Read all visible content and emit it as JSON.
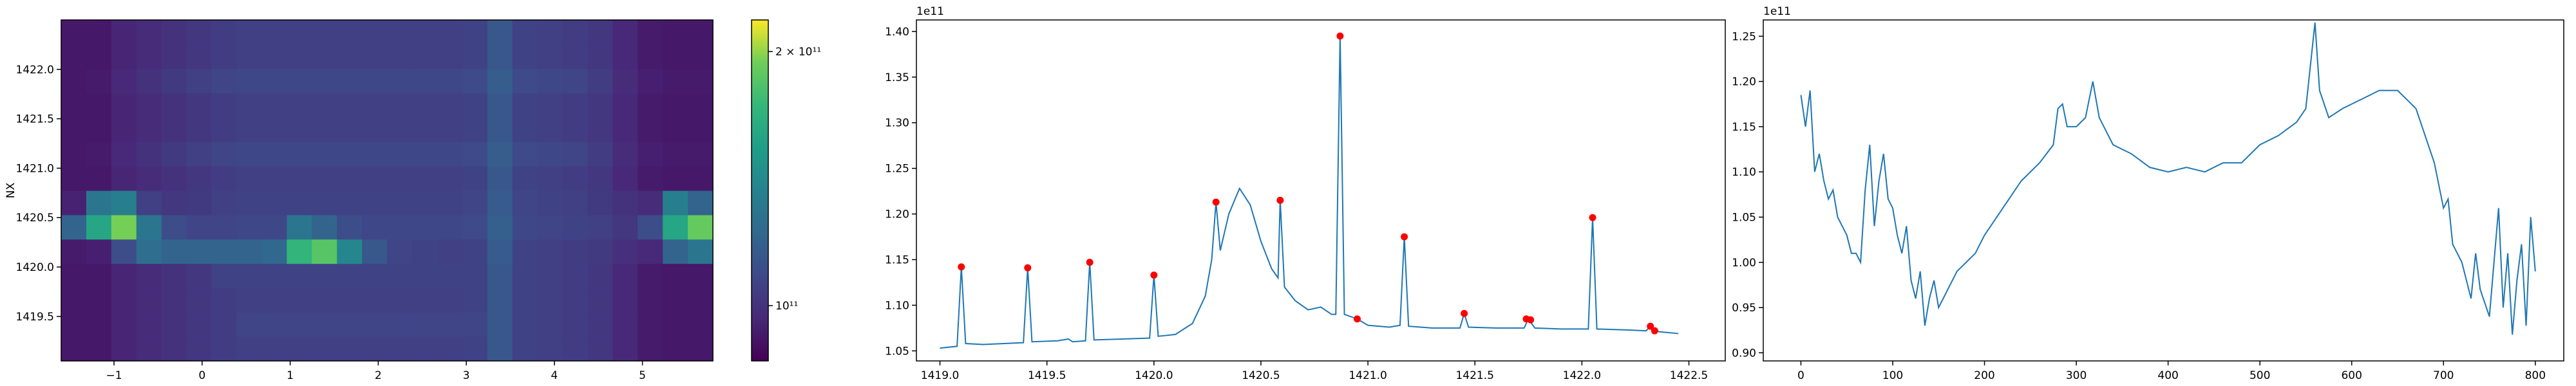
{
  "chart_data": [
    {
      "type": "heatmap",
      "ylabel": "NX",
      "colormap": "viridis",
      "xlim": [
        -1.6,
        5.8
      ],
      "ylim": [
        1419.05,
        1422.5
      ],
      "xticks": [
        {
          "value": -1,
          "label": "−1"
        },
        0,
        1,
        2,
        3,
        4,
        5
      ],
      "yticks": [
        1419.5,
        {
          "value": 1420,
          "label": "1420.0"
        },
        1420.5,
        {
          "value": 1421,
          "label": "1421.0"
        },
        1421.5,
        {
          "value": 1422,
          "label": "1422.0"
        }
      ],
      "z": [
        [
          92000000000.0,
          92000000000.0,
          96000000000.0,
          98000000000.0,
          100000000000.0,
          102000000000.0,
          104000000000.0,
          105000000000.0,
          105000000000.0,
          105000000000.0,
          105000000000.0,
          105000000000.0,
          105000000000.0,
          105000000000.0,
          105000000000.0,
          105000000000.0,
          106000000000.0,
          115000000000.0,
          106000000000.0,
          105000000000.0,
          104000000000.0,
          102000000000.0,
          97000000000.0,
          93000000000.0,
          92000000000.0,
          92000000000.0
        ],
        [
          92000000000.0,
          92000000000.0,
          96000000000.0,
          98000000000.0,
          100000000000.0,
          102000000000.0,
          104000000000.0,
          107000000000.0,
          107000000000.0,
          107000000000.0,
          107000000000.0,
          107000000000.0,
          107000000000.0,
          107000000000.0,
          107000000000.0,
          107000000000.0,
          107000000000.0,
          115000000000.0,
          106000000000.0,
          105000000000.0,
          104000000000.0,
          102000000000.0,
          97000000000.0,
          93000000000.0,
          92000000000.0,
          92000000000.0
        ],
        [
          92000000000.0,
          92000000000.0,
          96000000000.0,
          98000000000.0,
          100000000000.0,
          102000000000.0,
          104000000000.0,
          105000000000.0,
          105000000000.0,
          105000000000.0,
          105000000000.0,
          105000000000.0,
          105000000000.0,
          105000000000.0,
          105000000000.0,
          105000000000.0,
          106000000000.0,
          115000000000.0,
          106000000000.0,
          105000000000.0,
          104000000000.0,
          102000000000.0,
          97000000000.0,
          93000000000.0,
          92000000000.0,
          92000000000.0
        ],
        [
          92000000000.0,
          92000000000.0,
          96000000000.0,
          98000000000.0,
          100000000000.0,
          102000000000.0,
          106000000000.0,
          106000000000.0,
          106000000000.0,
          106000000000.0,
          106000000000.0,
          106000000000.0,
          106000000000.0,
          106000000000.0,
          106000000000.0,
          106000000000.0,
          106000000000.0,
          115000000000.0,
          106000000000.0,
          105000000000.0,
          104000000000.0,
          102000000000.0,
          97000000000.0,
          93000000000.0,
          92000000000.0,
          92000000000.0
        ],
        [
          93000000000.0,
          94000000000.0,
          110000000000.0,
          125000000000.0,
          120000000000.0,
          120000000000.0,
          120000000000.0,
          120000000000.0,
          122000000000.0,
          170000000000.0,
          185000000000.0,
          140000000000.0,
          115000000000.0,
          107000000000.0,
          106000000000.0,
          105000000000.0,
          106000000000.0,
          116000000000.0,
          106000000000.0,
          105000000000.0,
          104000000000.0,
          103000000000.0,
          99000000000.0,
          97000000000.0,
          120000000000.0,
          130000000000.0
        ],
        [
          120000000000.0,
          160000000000.0,
          195000000000.0,
          130000000000.0,
          110000000000.0,
          107000000000.0,
          107000000000.0,
          108000000000.0,
          108000000000.0,
          130000000000.0,
          120000000000.0,
          110000000000.0,
          108000000000.0,
          108000000000.0,
          108000000000.0,
          108000000000.0,
          109000000000.0,
          118000000000.0,
          108000000000.0,
          107000000000.0,
          106000000000.0,
          105000000000.0,
          102000000000.0,
          110000000000.0,
          160000000000.0,
          190000000000.0
        ],
        [
          95000000000.0,
          130000000000.0,
          135000000000.0,
          105000000000.0,
          102000000000.0,
          103000000000.0,
          105000000000.0,
          106000000000.0,
          106000000000.0,
          106000000000.0,
          106000000000.0,
          106000000000.0,
          106000000000.0,
          106000000000.0,
          106000000000.0,
          106000000000.0,
          107000000000.0,
          116000000000.0,
          107000000000.0,
          106000000000.0,
          105000000000.0,
          103000000000.0,
          100000000000.0,
          98000000000.0,
          135000000000.0,
          120000000000.0
        ],
        [
          92000000000.0,
          92000000000.0,
          96000000000.0,
          98000000000.0,
          100000000000.0,
          102000000000.0,
          104000000000.0,
          105000000000.0,
          105000000000.0,
          105000000000.0,
          105000000000.0,
          105000000000.0,
          105000000000.0,
          105000000000.0,
          105000000000.0,
          105000000000.0,
          106000000000.0,
          115000000000.0,
          106000000000.0,
          105000000000.0,
          104000000000.0,
          102000000000.0,
          97000000000.0,
          93000000000.0,
          92000000000.0,
          92000000000.0
        ],
        [
          92000000000.0,
          93000000000.0,
          97000000000.0,
          100000000000.0,
          103000000000.0,
          105000000000.0,
          107000000000.0,
          108000000000.0,
          108000000000.0,
          108000000000.0,
          108000000000.0,
          108000000000.0,
          108000000000.0,
          108000000000.0,
          108000000000.0,
          108000000000.0,
          109000000000.0,
          117000000000.0,
          109000000000.0,
          108000000000.0,
          107000000000.0,
          104000000000.0,
          98000000000.0,
          94000000000.0,
          93000000000.0,
          93000000000.0
        ],
        [
          92000000000.0,
          92000000000.0,
          96000000000.0,
          98000000000.0,
          100000000000.0,
          102000000000.0,
          104000000000.0,
          105000000000.0,
          105000000000.0,
          105000000000.0,
          105000000000.0,
          105000000000.0,
          105000000000.0,
          105000000000.0,
          105000000000.0,
          105000000000.0,
          106000000000.0,
          115000000000.0,
          106000000000.0,
          105000000000.0,
          104000000000.0,
          102000000000.0,
          97000000000.0,
          93000000000.0,
          92000000000.0,
          92000000000.0
        ],
        [
          92000000000.0,
          92000000000.0,
          96000000000.0,
          98000000000.0,
          100000000000.0,
          102000000000.0,
          104000000000.0,
          105000000000.0,
          105000000000.0,
          105000000000.0,
          105000000000.0,
          105000000000.0,
          105000000000.0,
          105000000000.0,
          105000000000.0,
          105000000000.0,
          106000000000.0,
          115000000000.0,
          106000000000.0,
          105000000000.0,
          104000000000.0,
          102000000000.0,
          97000000000.0,
          93000000000.0,
          92000000000.0,
          92000000000.0
        ],
        [
          92000000000.0,
          93000000000.0,
          97000000000.0,
          100000000000.0,
          103000000000.0,
          105000000000.0,
          107000000000.0,
          108000000000.0,
          108000000000.0,
          108000000000.0,
          108000000000.0,
          108000000000.0,
          108000000000.0,
          108000000000.0,
          108000000000.0,
          108000000000.0,
          109000000000.0,
          117000000000.0,
          109000000000.0,
          108000000000.0,
          107000000000.0,
          104000000000.0,
          98000000000.0,
          94000000000.0,
          93000000000.0,
          93000000000.0
        ],
        [
          92000000000.0,
          92000000000.0,
          96000000000.0,
          98000000000.0,
          100000000000.0,
          102000000000.0,
          104000000000.0,
          105000000000.0,
          105000000000.0,
          105000000000.0,
          105000000000.0,
          105000000000.0,
          105000000000.0,
          105000000000.0,
          105000000000.0,
          105000000000.0,
          106000000000.0,
          115000000000.0,
          106000000000.0,
          105000000000.0,
          104000000000.0,
          102000000000.0,
          97000000000.0,
          93000000000.0,
          92000000000.0,
          92000000000.0
        ],
        [
          92000000000.0,
          92000000000.0,
          96000000000.0,
          98000000000.0,
          100000000000.0,
          102000000000.0,
          104000000000.0,
          105000000000.0,
          105000000000.0,
          105000000000.0,
          105000000000.0,
          105000000000.0,
          105000000000.0,
          105000000000.0,
          105000000000.0,
          105000000000.0,
          106000000000.0,
          115000000000.0,
          106000000000.0,
          105000000000.0,
          104000000000.0,
          102000000000.0,
          97000000000.0,
          93000000000.0,
          92000000000.0,
          92000000000.0
        ]
      ],
      "colorbar": {
        "scale": "log",
        "clim": [
          86000000000.0,
          218000000000.0
        ],
        "ticks": [
          {
            "value": 100000000000.0,
            "label": "10¹¹"
          },
          {
            "value": 200000000000.0,
            "label": "2 × 10¹¹"
          }
        ]
      }
    },
    {
      "type": "line",
      "offset_label": "1e11",
      "xlim": [
        1418.89,
        1422.67
      ],
      "ylim": [
        1.039,
        1.4126
      ],
      "xticks": [
        {
          "value": 1419,
          "label": "1419.0"
        },
        1419.5,
        {
          "value": 1420,
          "label": "1420.0"
        },
        1420.5,
        {
          "value": 1421,
          "label": "1421.0"
        },
        1421.5,
        {
          "value": 1422,
          "label": "1422.0"
        },
        1422.5
      ],
      "yticks": [
        1.05,
        {
          "value": 1.1,
          "label": "1.10"
        },
        1.15,
        {
          "value": 1.2,
          "label": "1.20"
        },
        1.25,
        {
          "value": 1.3,
          "label": "1.30"
        },
        1.35,
        {
          "value": 1.4,
          "label": "1.40"
        }
      ],
      "series": [
        {
          "color": "#1f77b4",
          "x": [
            1419.0,
            1419.08,
            1419.1,
            1419.12,
            1419.2,
            1419.3,
            1419.39,
            1419.41,
            1419.43,
            1419.55,
            1419.6,
            1419.62,
            1419.68,
            1419.7,
            1419.72,
            1419.85,
            1419.98,
            1420.0,
            1420.02,
            1420.1,
            1420.18,
            1420.24,
            1420.27,
            1420.29,
            1420.31,
            1420.35,
            1420.4,
            1420.45,
            1420.5,
            1420.55,
            1420.58,
            1420.59,
            1420.61,
            1420.66,
            1420.72,
            1420.78,
            1420.83,
            1420.85,
            1420.87,
            1420.89,
            1420.95,
            1421.0,
            1421.1,
            1421.15,
            1421.17,
            1421.19,
            1421.3,
            1421.43,
            1421.45,
            1421.47,
            1421.6,
            1421.73,
            1421.75,
            1421.78,
            1421.9,
            1422.03,
            1422.05,
            1422.07,
            1422.2,
            1422.3,
            1422.32,
            1422.36,
            1422.45
          ],
          "values": [
            1.053,
            1.055,
            1.142,
            1.058,
            1.057,
            1.058,
            1.059,
            1.141,
            1.06,
            1.061,
            1.063,
            1.06,
            1.061,
            1.147,
            1.062,
            1.063,
            1.064,
            1.133,
            1.066,
            1.068,
            1.08,
            1.11,
            1.15,
            1.213,
            1.16,
            1.2,
            1.228,
            1.21,
            1.17,
            1.14,
            1.13,
            1.215,
            1.12,
            1.105,
            1.095,
            1.098,
            1.09,
            1.09,
            1.395,
            1.09,
            1.085,
            1.078,
            1.076,
            1.078,
            1.175,
            1.077,
            1.075,
            1.075,
            1.091,
            1.076,
            1.075,
            1.075,
            1.085,
            1.075,
            1.074,
            1.074,
            1.196,
            1.074,
            1.073,
            1.072,
            1.077,
            1.071,
            1.069
          ]
        }
      ],
      "markers": {
        "color": "red",
        "x": [
          1419.1,
          1419.41,
          1419.7,
          1420.0,
          1420.29,
          1420.59,
          1420.87,
          1420.95,
          1421.17,
          1421.45,
          1421.74,
          1421.76,
          1422.05,
          1422.32,
          1422.34
        ],
        "values": [
          1.142,
          1.141,
          1.147,
          1.133,
          1.213,
          1.215,
          1.395,
          1.085,
          1.175,
          1.091,
          1.085,
          1.084,
          1.196,
          1.077,
          1.072
        ]
      }
    },
    {
      "type": "line",
      "offset_label": "1e11",
      "xlim": [
        -41,
        831
      ],
      "ylim": [
        0.891,
        1.268
      ],
      "xticks": [
        0,
        100,
        200,
        300,
        400,
        500,
        600,
        700,
        800
      ],
      "yticks": [
        {
          "value": 0.9,
          "label": "0.90"
        },
        0.95,
        {
          "value": 1.0,
          "label": "1.00"
        },
        1.05,
        {
          "value": 1.1,
          "label": "1.10"
        },
        1.15,
        {
          "value": 1.2,
          "label": "1.20"
        },
        1.25
      ],
      "series": [
        {
          "color": "#1f77b4",
          "x": [
            0,
            5,
            10,
            15,
            20,
            25,
            30,
            35,
            40,
            50,
            55,
            60,
            65,
            70,
            75,
            80,
            85,
            90,
            95,
            100,
            105,
            110,
            115,
            120,
            125,
            130,
            135,
            140,
            145,
            150,
            155,
            160,
            170,
            180,
            190,
            200,
            220,
            240,
            260,
            275,
            280,
            285,
            290,
            300,
            310,
            318,
            325,
            340,
            360,
            380,
            400,
            420,
            440,
            460,
            480,
            500,
            520,
            540,
            550,
            560,
            565,
            575,
            590,
            610,
            630,
            650,
            660,
            670,
            680,
            690,
            700,
            705,
            710,
            720,
            730,
            735,
            740,
            750,
            760,
            765,
            770,
            775,
            780,
            785,
            790,
            795,
            800
          ],
          "values": [
            1.185,
            1.15,
            1.19,
            1.1,
            1.12,
            1.09,
            1.07,
            1.08,
            1.05,
            1.03,
            1.01,
            1.01,
            1.0,
            1.08,
            1.13,
            1.04,
            1.09,
            1.12,
            1.07,
            1.06,
            1.03,
            1.01,
            1.04,
            0.98,
            0.96,
            0.99,
            0.93,
            0.96,
            0.98,
            0.95,
            0.96,
            0.97,
            0.99,
            1.0,
            1.01,
            1.03,
            1.06,
            1.09,
            1.11,
            1.13,
            1.17,
            1.175,
            1.15,
            1.15,
            1.16,
            1.2,
            1.16,
            1.13,
            1.12,
            1.105,
            1.1,
            1.105,
            1.1,
            1.11,
            1.11,
            1.13,
            1.14,
            1.155,
            1.17,
            1.265,
            1.19,
            1.16,
            1.17,
            1.18,
            1.19,
            1.19,
            1.18,
            1.17,
            1.14,
            1.11,
            1.06,
            1.07,
            1.02,
            1.0,
            0.96,
            1.01,
            0.97,
            0.94,
            1.06,
            0.95,
            1.01,
            0.92,
            0.98,
            1.02,
            0.93,
            1.05,
            0.99
          ]
        }
      ]
    }
  ]
}
